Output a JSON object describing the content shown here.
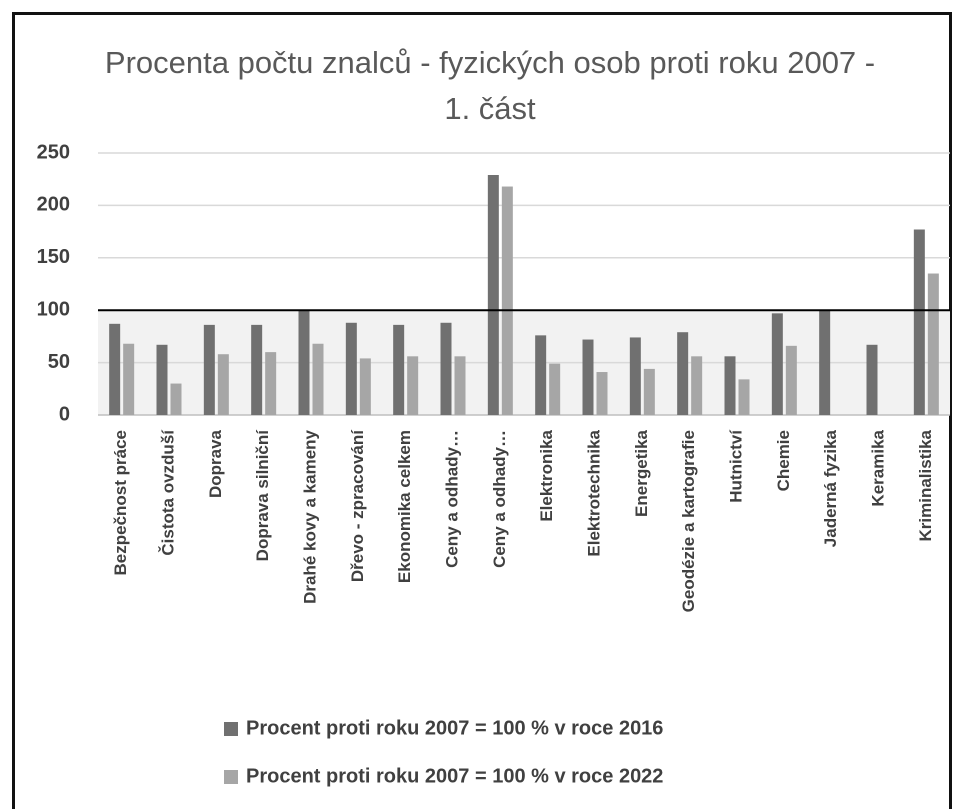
{
  "chart_data": {
    "type": "bar",
    "title": "Procenta počtu znalců - fyzických osob proti roku 2007 - 1. část",
    "categories": [
      "Bezpečnost práce",
      "Čistota ovzduší",
      "Doprava",
      "Doprava silniční",
      "Drahé kovy a kameny",
      "Dřevo - zpracování",
      "Ekonomika celkem",
      "Ceny a odhady…",
      "Ceny a odhady…",
      "Elektronika",
      "Elektrotechnika",
      "Energetika",
      "Geodézie a kartografie",
      "Hutnictví",
      "Chemie",
      "Jaderná fyzika",
      "Keramika",
      "Kriminalistika"
    ],
    "series": [
      {
        "name": "Procent proti roku 2007 = 100 % v roce 2016",
        "color": "#707070",
        "values": [
          87,
          67,
          86,
          86,
          100,
          88,
          86,
          88,
          229,
          76,
          72,
          74,
          79,
          56,
          97,
          100,
          67,
          177
        ]
      },
      {
        "name": "Procent proti roku 2007 = 100 % v roce 2022",
        "color": "#a6a6a6",
        "values": [
          68,
          30,
          58,
          60,
          68,
          54,
          56,
          56,
          218,
          49,
          41,
          44,
          56,
          34,
          66,
          null,
          null,
          135
        ]
      }
    ],
    "reference_line": 100,
    "ylim": [
      0,
      250
    ],
    "yticks": [
      0,
      50,
      100,
      150,
      200,
      250
    ],
    "grid": true,
    "legend": "bottom"
  }
}
